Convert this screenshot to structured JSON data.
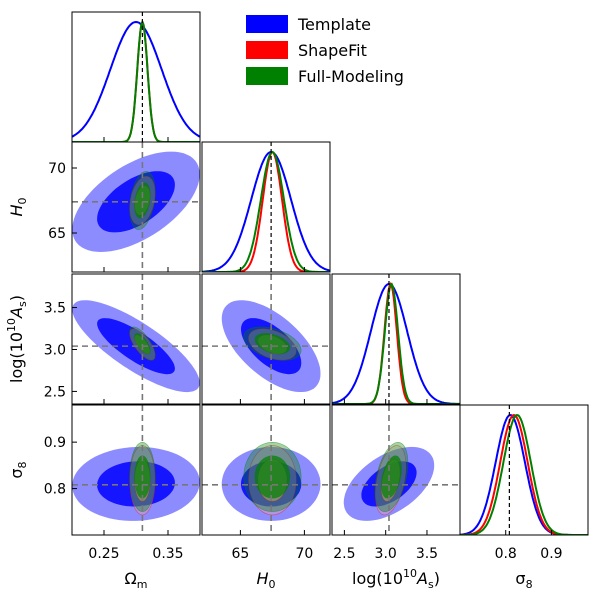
{
  "figure": {
    "legend": [
      "Template",
      "ShapeFit",
      "Full-Modeling"
    ]
  },
  "chart_data": {
    "type": "corner",
    "parameters": [
      {
        "name": "Omega_m",
        "label": "Ω",
        "sub": "m",
        "range": [
          0.2,
          0.4
        ],
        "ticks": [
          0.25,
          0.35
        ],
        "tick_labels": [
          "0.25",
          "0.35"
        ],
        "truth": 0.31
      },
      {
        "name": "H0",
        "label": "H",
        "sub": "0",
        "italic": true,
        "range": [
          62,
          72
        ],
        "ticks": [
          65,
          70
        ],
        "tick_labels": [
          "65",
          "70"
        ],
        "truth": 67.4
      },
      {
        "name": "logA",
        "label": "log(10",
        "sup": "10",
        "tail": "A",
        "tail_sub": "s",
        "close": ")",
        "range": [
          2.35,
          3.9
        ],
        "ticks": [
          2.5,
          3.0,
          3.5
        ],
        "tick_labels": [
          "2.5",
          "3.0",
          "3.5"
        ],
        "truth": 3.04
      },
      {
        "name": "sigma8",
        "label": "σ",
        "sub": "8",
        "range": [
          0.7,
          0.98
        ],
        "ticks": [
          0.8,
          0.9
        ],
        "tick_labels": [
          "0.8",
          "0.9"
        ],
        "truth": 0.808
      }
    ],
    "axis_labels": {
      "x": [
        "Ωm",
        "H0",
        "log(10^10 As)",
        "σ8"
      ],
      "y": [
        "H0",
        "log(10^10 As)",
        "σ8"
      ]
    },
    "series": [
      {
        "name": "Template",
        "color": "#0000ff",
        "mean": [
          0.3,
          67.4,
          3.04,
          0.81
        ],
        "sigma": [
          0.04,
          1.55,
          0.22,
          0.032
        ]
      },
      {
        "name": "ShapeFit",
        "color": "#ff0000",
        "mean": [
          0.31,
          67.5,
          3.06,
          0.818
        ],
        "sigma": [
          0.008,
          0.75,
          0.075,
          0.03
        ]
      },
      {
        "name": "Full-Modeling",
        "color": "#008000",
        "mean": [
          0.31,
          67.5,
          3.07,
          0.825
        ],
        "sigma": [
          0.008,
          0.9,
          0.08,
          0.03
        ]
      }
    ],
    "correlations": {
      "Template": {
        "0-1": 0.55,
        "0-2": -0.8,
        "1-2": -0.6,
        "0-3": 0.05,
        "1-3": 0.0,
        "2-3": 0.5
      },
      "ShapeFit": {
        "0-1": 0.3,
        "0-2": -0.7,
        "1-2": -0.4,
        "0-3": 0.0,
        "1-3": 0.0,
        "2-3": 0.4
      },
      "Full-Modeling": {
        "0-1": 0.3,
        "0-2": -0.7,
        "1-2": -0.4,
        "0-3": 0.0,
        "1-3": 0.0,
        "2-3": 0.4
      }
    },
    "grid": false,
    "legend_position": "top-right"
  }
}
